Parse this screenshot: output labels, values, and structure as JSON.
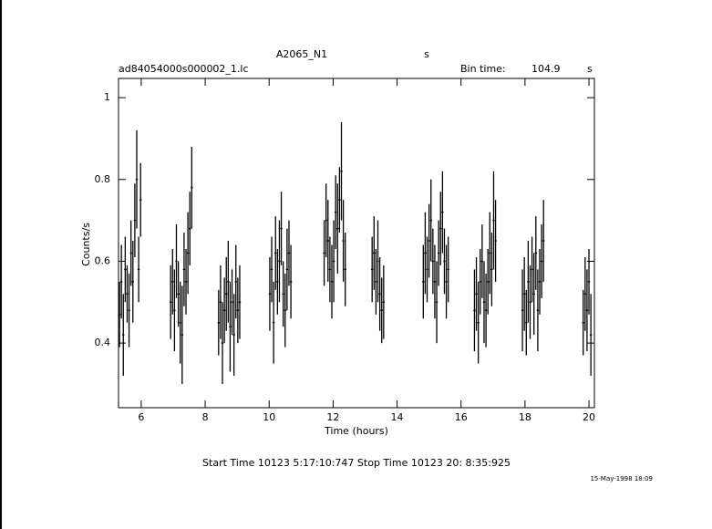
{
  "chart_data": {
    "type": "errorbar",
    "title": "A2065_N1",
    "title_unit": "s",
    "subtitle": "ad84054000s000002_1.lc",
    "bin_label": "Bin time:",
    "bin_value": "104.9",
    "bin_unit": "s",
    "xlabel": "Time (hours)",
    "ylabel": "Counts/s",
    "footer": "Start Time 10123  5:17:10:747    Stop Time 10123 20: 8:35:925",
    "date_stamp": "15-May-1998 18:09",
    "color": "#000000",
    "xlim": [
      5.29,
      20.17
    ],
    "xticks": [
      6,
      8,
      10,
      12,
      14,
      16,
      18,
      20
    ],
    "ylim": [
      0.242,
      1.047
    ],
    "yticks": [
      0.4,
      0.6,
      0.8,
      1
    ],
    "x": [
      5.32,
      5.38,
      5.44,
      5.5,
      5.56,
      5.62,
      5.68,
      5.74,
      5.8,
      5.86,
      5.92,
      5.98,
      6.92,
      6.98,
      7.04,
      7.1,
      7.16,
      7.22,
      7.28,
      7.34,
      7.4,
      7.46,
      7.52,
      7.58,
      8.42,
      8.48,
      8.54,
      8.6,
      8.66,
      8.72,
      8.78,
      8.84,
      8.9,
      8.96,
      9.02,
      9.08,
      10.02,
      10.08,
      10.14,
      10.2,
      10.26,
      10.32,
      10.38,
      10.44,
      10.5,
      10.56,
      10.62,
      10.68,
      11.72,
      11.78,
      11.84,
      11.9,
      11.96,
      12.02,
      12.08,
      12.14,
      12.2,
      12.26,
      12.32,
      12.38,
      13.22,
      13.28,
      13.34,
      13.4,
      13.46,
      13.52,
      13.58,
      14.82,
      14.88,
      14.94,
      15,
      15.06,
      15.12,
      15.18,
      15.24,
      15.3,
      15.36,
      15.42,
      15.48,
      15.54,
      15.6,
      16.42,
      16.48,
      16.54,
      16.6,
      16.66,
      16.72,
      16.78,
      16.84,
      16.9,
      16.96,
      17.02,
      17.08,
      17.92,
      17.98,
      18.04,
      18.1,
      18.16,
      18.22,
      18.28,
      18.34,
      18.4,
      18.46,
      18.52,
      18.58,
      19.82,
      19.88,
      19.94,
      20,
      20.06
    ],
    "values": [
      0.47,
      0.55,
      0.42,
      0.58,
      0.52,
      0.48,
      0.62,
      0.55,
      0.7,
      0.8,
      0.58,
      0.75,
      0.5,
      0.55,
      0.48,
      0.6,
      0.52,
      0.45,
      0.42,
      0.58,
      0.55,
      0.62,
      0.68,
      0.78,
      0.45,
      0.5,
      0.4,
      0.48,
      0.52,
      0.55,
      0.44,
      0.5,
      0.42,
      0.55,
      0.48,
      0.5,
      0.52,
      0.58,
      0.45,
      0.62,
      0.55,
      0.6,
      0.68,
      0.52,
      0.48,
      0.58,
      0.62,
      0.55,
      0.62,
      0.7,
      0.65,
      0.58,
      0.55,
      0.6,
      0.72,
      0.68,
      0.75,
      0.82,
      0.65,
      0.58,
      0.58,
      0.62,
      0.55,
      0.6,
      0.52,
      0.48,
      0.5,
      0.55,
      0.62,
      0.58,
      0.65,
      0.7,
      0.6,
      0.55,
      0.5,
      0.62,
      0.68,
      0.72,
      0.6,
      0.55,
      0.58,
      0.48,
      0.52,
      0.45,
      0.55,
      0.6,
      0.5,
      0.48,
      0.55,
      0.62,
      0.58,
      0.7,
      0.65,
      0.48,
      0.52,
      0.45,
      0.55,
      0.5,
      0.58,
      0.52,
      0.62,
      0.48,
      0.55,
      0.6,
      0.65,
      0.45,
      0.52,
      0.48,
      0.55,
      0.42
    ],
    "errors": [
      0.08,
      0.09,
      0.1,
      0.08,
      0.07,
      0.09,
      0.08,
      0.1,
      0.09,
      0.12,
      0.08,
      0.09,
      0.09,
      0.08,
      0.1,
      0.09,
      0.08,
      0.1,
      0.12,
      0.09,
      0.08,
      0.1,
      0.09,
      0.1,
      0.08,
      0.09,
      0.1,
      0.08,
      0.09,
      0.1,
      0.11,
      0.08,
      0.1,
      0.09,
      0.08,
      0.09,
      0.09,
      0.08,
      0.1,
      0.09,
      0.08,
      0.1,
      0.09,
      0.08,
      0.09,
      0.1,
      0.08,
      0.09,
      0.08,
      0.09,
      0.1,
      0.08,
      0.09,
      0.1,
      0.09,
      0.11,
      0.08,
      0.12,
      0.1,
      0.09,
      0.08,
      0.09,
      0.08,
      0.1,
      0.09,
      0.08,
      0.09,
      0.09,
      0.1,
      0.08,
      0.09,
      0.1,
      0.08,
      0.09,
      0.1,
      0.08,
      0.09,
      0.1,
      0.08,
      0.09,
      0.08,
      0.1,
      0.09,
      0.1,
      0.08,
      0.09,
      0.1,
      0.09,
      0.08,
      0.1,
      0.09,
      0.12,
      0.1,
      0.1,
      0.09,
      0.08,
      0.1,
      0.09,
      0.08,
      0.1,
      0.09,
      0.1,
      0.08,
      0.09,
      0.1,
      0.08,
      0.09,
      0.1,
      0.08,
      0.1
    ]
  }
}
